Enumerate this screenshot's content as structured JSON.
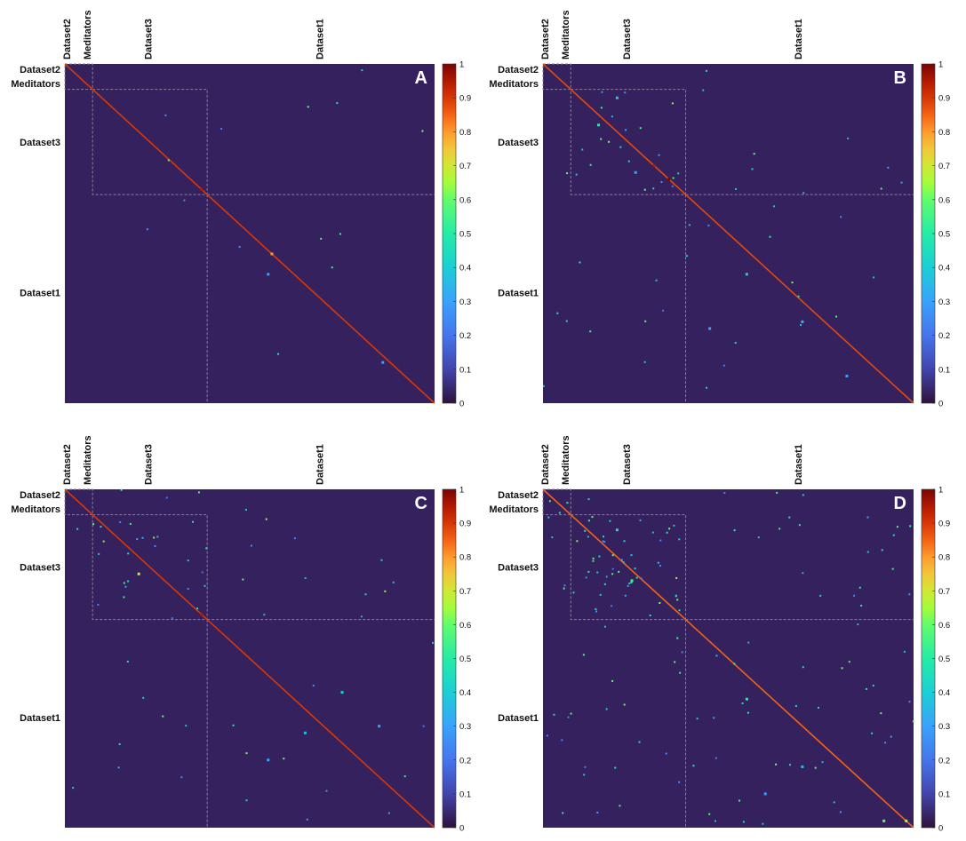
{
  "chart_data": [
    {
      "type": "heatmap",
      "panel_label": "A",
      "top_labels": [
        "Dataset2",
        "Meditators",
        "Dataset3",
        "Dataset1"
      ],
      "left_labels": [
        "Dataset2",
        "Meditators",
        "Dataset3",
        "Dataset1"
      ],
      "groups": [
        "Dataset2",
        "Meditators",
        "Dataset3",
        "Dataset1"
      ],
      "group_boundaries": [
        0,
        0.005,
        0.075,
        0.385,
        1.0
      ],
      "diagonal_value": 0.9,
      "zlim": [
        0,
        1
      ],
      "colorbar_ticks": [
        "0",
        "0.1",
        "0.2",
        "0.3",
        "0.4",
        "0.5",
        "0.6",
        "0.7",
        "0.8",
        "0.9",
        "1"
      ],
      "colormap": "turbo",
      "background_value": 0.03,
      "highlights": [
        [
          0.37,
          0.37,
          0.95
        ],
        [
          0.56,
          0.56,
          0.8
        ],
        [
          0.55,
          0.62,
          0.3
        ],
        [
          0.86,
          0.88,
          0.3
        ]
      ]
    },
    {
      "type": "heatmap",
      "panel_label": "B",
      "top_labels": [
        "Dataset2",
        "Meditators",
        "Dataset3",
        "Dataset1"
      ],
      "left_labels": [
        "Dataset2",
        "Meditators",
        "Dataset3",
        "Dataset1"
      ],
      "groups": [
        "Dataset2",
        "Meditators",
        "Dataset3",
        "Dataset1"
      ],
      "group_boundaries": [
        0,
        0.005,
        0.075,
        0.385,
        1.0
      ],
      "diagonal_value": 0.88,
      "zlim": [
        0,
        1
      ],
      "colorbar_ticks": [
        "0",
        "0.1",
        "0.2",
        "0.3",
        "0.4",
        "0.5",
        "0.6",
        "0.7",
        "0.8",
        "0.9",
        "1"
      ],
      "colormap": "turbo",
      "background_value": 0.03,
      "highlights": [
        [
          0.3,
          0.3,
          0.95
        ],
        [
          0.34,
          0.34,
          1.0
        ],
        [
          0.15,
          0.18,
          0.5
        ],
        [
          0.2,
          0.1,
          0.4
        ],
        [
          0.25,
          0.32,
          0.3
        ],
        [
          0.55,
          0.62,
          0.4
        ],
        [
          0.45,
          0.78,
          0.3
        ],
        [
          0.7,
          0.76,
          0.35
        ],
        [
          0.82,
          0.92,
          0.3
        ]
      ]
    },
    {
      "type": "heatmap",
      "panel_label": "C",
      "top_labels": [
        "Dataset2",
        "Meditators",
        "Dataset3",
        "Dataset1"
      ],
      "left_labels": [
        "Dataset2",
        "Meditators",
        "Dataset3",
        "Dataset1"
      ],
      "groups": [
        "Dataset2",
        "Meditators",
        "Dataset3",
        "Dataset1"
      ],
      "group_boundaries": [
        0,
        0.005,
        0.075,
        0.385,
        1.0
      ],
      "diagonal_value": 0.9,
      "zlim": [
        0,
        1
      ],
      "colorbar_ticks": [
        "0",
        "0.1",
        "0.2",
        "0.3",
        "0.4",
        "0.5",
        "0.6",
        "0.7",
        "0.8",
        "0.9",
        "1"
      ],
      "colormap": "turbo",
      "background_value": 0.03,
      "highlights": [
        [
          0.37,
          0.37,
          0.95
        ],
        [
          0.2,
          0.25,
          0.7
        ],
        [
          0.65,
          0.72,
          0.35
        ],
        [
          0.55,
          0.8,
          0.3
        ],
        [
          0.75,
          0.6,
          0.4
        ],
        [
          0.85,
          0.7,
          0.3
        ]
      ]
    },
    {
      "type": "heatmap",
      "panel_label": "D",
      "top_labels": [
        "Dataset2",
        "Meditators",
        "Dataset3",
        "Dataset1"
      ],
      "left_labels": [
        "Dataset2",
        "Meditators",
        "Dataset3",
        "Dataset1"
      ],
      "groups": [
        "Dataset2",
        "Meditators",
        "Dataset3",
        "Dataset1"
      ],
      "group_boundaries": [
        0,
        0.005,
        0.075,
        0.385,
        1.0
      ],
      "diagonal_value": 0.85,
      "zlim": [
        0,
        1
      ],
      "colorbar_ticks": [
        "0",
        "0.1",
        "0.2",
        "0.3",
        "0.4",
        "0.5",
        "0.6",
        "0.7",
        "0.8",
        "0.9",
        "1"
      ],
      "colormap": "turbo",
      "background_value": 0.03,
      "highlights": [
        [
          0.55,
          0.62,
          0.5
        ],
        [
          0.24,
          0.27,
          0.55
        ],
        [
          0.92,
          0.98,
          0.6
        ],
        [
          0.2,
          0.12,
          0.45
        ],
        [
          0.7,
          0.82,
          0.35
        ],
        [
          0.6,
          0.9,
          0.3
        ],
        [
          0.98,
          0.98,
          0.65
        ]
      ]
    }
  ]
}
